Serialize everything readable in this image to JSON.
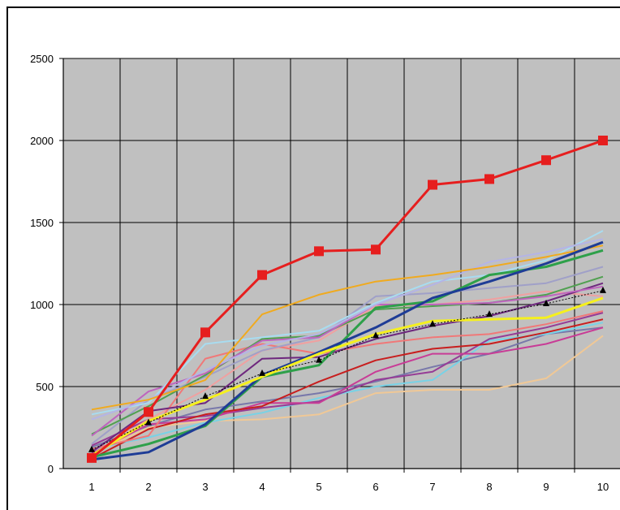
{
  "chart_data": {
    "type": "line",
    "title": "",
    "xlabel": "",
    "ylabel": "",
    "x": [
      1,
      2,
      3,
      4,
      5,
      6,
      7,
      8,
      9,
      10
    ],
    "xlim": [
      0.5,
      10.5
    ],
    "ylim": [
      0,
      2500
    ],
    "y_ticks": [
      "0",
      "500",
      "1000",
      "1500",
      "2000",
      "2500"
    ],
    "x_ticks": [
      "1",
      "2",
      "3",
      "4",
      "5",
      "6",
      "7",
      "8",
      "9",
      "10"
    ],
    "grid": true,
    "plot_background": "#c0c0c0",
    "series": [
      {
        "color": "#e61e1e",
        "marker": "square",
        "width": 3,
        "values": [
          65,
          345,
          830,
          1180,
          1325,
          1335,
          1730,
          1765,
          1880,
          2000
        ]
      },
      {
        "color": "#000000",
        "marker": "triangle",
        "dashed": true,
        "width": 1,
        "values": [
          115,
          280,
          440,
          580,
          660,
          810,
          880,
          940,
          1005,
          1085
        ]
      },
      {
        "color": "#f5f01e",
        "width": 3,
        "values": [
          80,
          290,
          420,
          560,
          700,
          820,
          900,
          910,
          920,
          1040
        ]
      },
      {
        "color": "#1e3c96",
        "width": 3,
        "values": [
          55,
          100,
          270,
          570,
          710,
          860,
          1040,
          1140,
          1250,
          1380
        ]
      },
      {
        "color": "#2ea04a",
        "width": 3,
        "values": [
          70,
          150,
          260,
          560,
          630,
          980,
          1020,
          1180,
          1230,
          1330
        ]
      },
      {
        "color": "#f0aa1e",
        "width": 2,
        "values": [
          360,
          420,
          540,
          940,
          1060,
          1140,
          1180,
          1230,
          1290,
          1360
        ]
      },
      {
        "color": "#b4b4e6",
        "width": 2,
        "values": [
          300,
          420,
          600,
          750,
          820,
          1000,
          1120,
          1260,
          1320,
          1400
        ]
      },
      {
        "color": "#a8dcf0",
        "width": 2,
        "values": [
          330,
          400,
          760,
          800,
          840,
          1010,
          1140,
          1180,
          1270,
          1450
        ]
      },
      {
        "color": "#be64be",
        "width": 2,
        "values": [
          200,
          470,
          580,
          780,
          800,
          1000,
          1000,
          1010,
          1050,
          1110
        ]
      },
      {
        "color": "#50a050",
        "width": 2,
        "values": [
          210,
          380,
          570,
          790,
          810,
          970,
          990,
          1010,
          1060,
          1170
        ]
      },
      {
        "color": "#a0a0c8",
        "width": 2,
        "values": [
          150,
          420,
          560,
          720,
          800,
          1050,
          1070,
          1100,
          1130,
          1230
        ]
      },
      {
        "color": "#6e287e",
        "width": 2,
        "values": [
          100,
          350,
          400,
          670,
          680,
          790,
          870,
          930,
          1020,
          1130
        ]
      },
      {
        "color": "#f07878",
        "width": 2,
        "values": [
          120,
          200,
          670,
          760,
          700,
          760,
          800,
          820,
          880,
          960
        ]
      },
      {
        "color": "#f0a0a0",
        "width": 2,
        "values": [
          80,
          300,
          480,
          720,
          780,
          990,
          1000,
          1030,
          1080,
          1050
        ]
      },
      {
        "color": "#c81e1e",
        "width": 2,
        "values": [
          60,
          240,
          330,
          380,
          530,
          660,
          730,
          760,
          830,
          910
        ]
      },
      {
        "color": "#c83c96",
        "width": 2,
        "values": [
          90,
          270,
          300,
          400,
          400,
          590,
          700,
          700,
          760,
          860
        ]
      },
      {
        "color": "#963c96",
        "width": 2,
        "values": [
          140,
          300,
          320,
          370,
          410,
          540,
          590,
          790,
          860,
          950
        ]
      },
      {
        "color": "#78d2e6",
        "width": 2,
        "values": [
          120,
          190,
          280,
          340,
          430,
          500,
          540,
          780,
          820,
          890
        ]
      },
      {
        "color": "#f0c896",
        "width": 2,
        "values": [
          90,
          250,
          290,
          300,
          330,
          460,
          480,
          480,
          550,
          810
        ]
      },
      {
        "color": "#7878aa",
        "width": 2,
        "values": [
          130,
          260,
          360,
          410,
          460,
          530,
          620,
          700,
          820,
          860
        ]
      }
    ]
  }
}
